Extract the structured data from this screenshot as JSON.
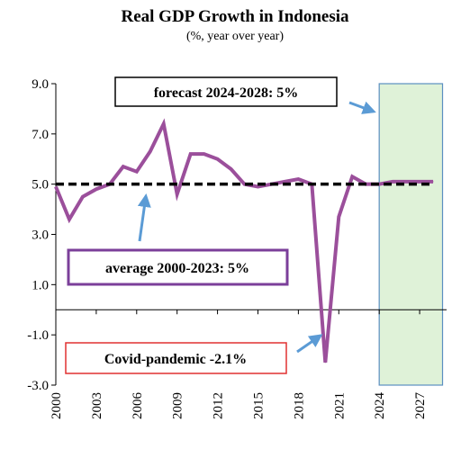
{
  "chart_data": {
    "type": "line",
    "title": "Real GDP Growth in Indonesia",
    "subtitle": "(%, year over year)",
    "xlabel": "",
    "ylabel": "",
    "ylim": [
      -3.0,
      9.0
    ],
    "xlim": [
      2000,
      2029
    ],
    "y_ticks": [
      9.0,
      7.0,
      5.0,
      3.0,
      1.0,
      -1.0,
      -3.0
    ],
    "y_tick_labels": [
      "9.0",
      "7.0",
      "5.0",
      "3.0",
      "1.0",
      "-1.0",
      "-3.0"
    ],
    "x_ticks": [
      2000,
      2003,
      2006,
      2009,
      2012,
      2015,
      2018,
      2021,
      2024,
      2027
    ],
    "x_tick_labels": [
      "2000",
      "2003",
      "2006",
      "2009",
      "2012",
      "2015",
      "2018",
      "2021",
      "2024",
      "2027"
    ],
    "grid": false,
    "series": [
      {
        "kind": "actual_and_forecast",
        "color": "#9b4f9b",
        "x": [
          2000,
          2001,
          2002,
          2003,
          2004,
          2005,
          2006,
          2007,
          2008,
          2009,
          2010,
          2011,
          2012,
          2013,
          2014,
          2015,
          2016,
          2017,
          2018,
          2019,
          2020,
          2021,
          2022,
          2023,
          2024,
          2025,
          2026,
          2027,
          2028
        ],
        "values": [
          4.9,
          3.6,
          4.5,
          4.8,
          5.0,
          5.7,
          5.5,
          6.3,
          7.4,
          4.6,
          6.2,
          6.2,
          6.0,
          5.6,
          5.0,
          4.9,
          5.0,
          5.1,
          5.2,
          5.0,
          -2.1,
          3.7,
          5.3,
          5.0,
          5.0,
          5.1,
          5.1,
          5.1,
          5.1
        ]
      },
      {
        "kind": "average",
        "color": "#000000",
        "x": [
          2000,
          2028
        ],
        "values": [
          5.0,
          5.0
        ]
      }
    ],
    "forecast_region": {
      "x_start": 2024,
      "x_end": 2028.7,
      "fill": "#dff2d8",
      "stroke": "#5b8fc0"
    },
    "annotations": [
      {
        "text": "forecast 2024-2028: 5%",
        "border_color": "#000000"
      },
      {
        "text": "average 2000-2023: 5%",
        "border_color": "#7b3f9a"
      },
      {
        "text": "Covid-pandemic -2.1%",
        "border_color": "#e03030"
      }
    ],
    "arrow_color": "#5b9bd5"
  }
}
